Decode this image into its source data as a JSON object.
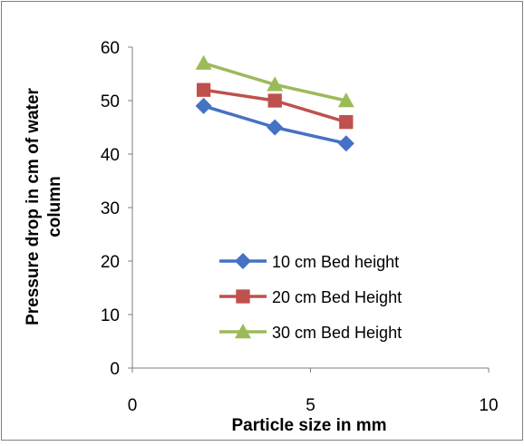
{
  "chart_data": {
    "type": "line",
    "title": "",
    "xlabel": "Particle size in mm",
    "ylabel": [
      "Pressure drop in cm of water",
      "column"
    ],
    "xlim": [
      0,
      10
    ],
    "ylim": [
      0,
      60
    ],
    "xticks": [
      0,
      5,
      10
    ],
    "yticks": [
      0,
      10,
      20,
      30,
      40,
      50,
      60
    ],
    "grid": false,
    "legend_position": "right-inside",
    "x": [
      2,
      4,
      6
    ],
    "series": [
      {
        "name": "10 cm Bed height",
        "values": [
          49,
          45,
          42
        ],
        "color": "#4472C4",
        "marker": "diamond"
      },
      {
        "name": "20 cm Bed Height",
        "values": [
          52,
          50,
          46
        ],
        "color": "#C0504D",
        "marker": "square"
      },
      {
        "name": "30 cm Bed Height",
        "values": [
          57,
          53,
          50
        ],
        "color": "#9BBB59",
        "marker": "triangle"
      }
    ]
  }
}
